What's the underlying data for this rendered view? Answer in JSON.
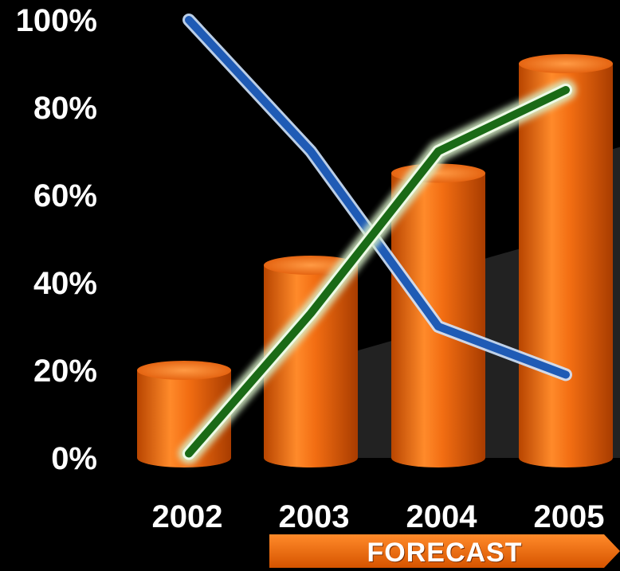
{
  "chart_data": {
    "type": "bar",
    "categories": [
      "2002",
      "2003",
      "2004",
      "2005"
    ],
    "values": [
      20,
      44,
      65,
      90
    ],
    "series": [
      {
        "type": "line",
        "values": [
          100,
          70,
          30,
          19
        ],
        "color": "#1f5bb5"
      },
      {
        "type": "line",
        "values": [
          1,
          33,
          70,
          84
        ],
        "color": "#1a6a16"
      }
    ],
    "ylim": [
      0,
      100
    ],
    "yticks": [
      "0%",
      "20%",
      "40%",
      "60%",
      "80%",
      "100%"
    ],
    "title": "",
    "xlabel": "",
    "ylabel": "",
    "bar_color": "#f06a10",
    "grid": false
  },
  "annotations": {
    "forecast_label": "FORECAST"
  },
  "colors": {
    "background": "#000000",
    "accent": "#f06a10"
  }
}
